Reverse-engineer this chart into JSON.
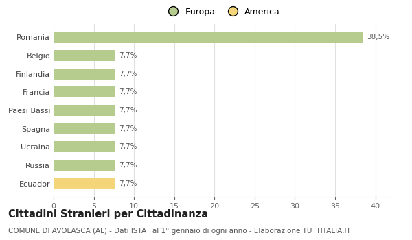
{
  "categories": [
    "Ecuador",
    "Russia",
    "Ucraina",
    "Spagna",
    "Paesi Bassi",
    "Francia",
    "Finlandia",
    "Belgio",
    "Romania"
  ],
  "values": [
    7.7,
    7.7,
    7.7,
    7.7,
    7.7,
    7.7,
    7.7,
    7.7,
    38.5
  ],
  "bar_colors": [
    "#f5d57a",
    "#b5cc8e",
    "#b5cc8e",
    "#b5cc8e",
    "#b5cc8e",
    "#b5cc8e",
    "#b5cc8e",
    "#b5cc8e",
    "#b5cc8e"
  ],
  "labels": [
    "7,7%",
    "7,7%",
    "7,7%",
    "7,7%",
    "7,7%",
    "7,7%",
    "7,7%",
    "7,7%",
    "38,5%"
  ],
  "legend_labels": [
    "Europa",
    "America"
  ],
  "legend_colors": [
    "#b5cc8e",
    "#f5d57a"
  ],
  "xlim": [
    0,
    42
  ],
  "xticks": [
    0,
    5,
    10,
    15,
    20,
    25,
    30,
    35,
    40
  ],
  "title": "Cittadini Stranieri per Cittadinanza",
  "subtitle": "COMUNE DI AVOLASCA (AL) - Dati ISTAT al 1° gennaio di ogni anno - Elaborazione TUTTITALIA.IT",
  "title_fontsize": 10.5,
  "subtitle_fontsize": 7.5,
  "bar_label_fontsize": 7.5,
  "ytick_fontsize": 8,
  "xtick_fontsize": 8,
  "bg_color": "#ffffff",
  "grid_color": "#e0e0e0"
}
